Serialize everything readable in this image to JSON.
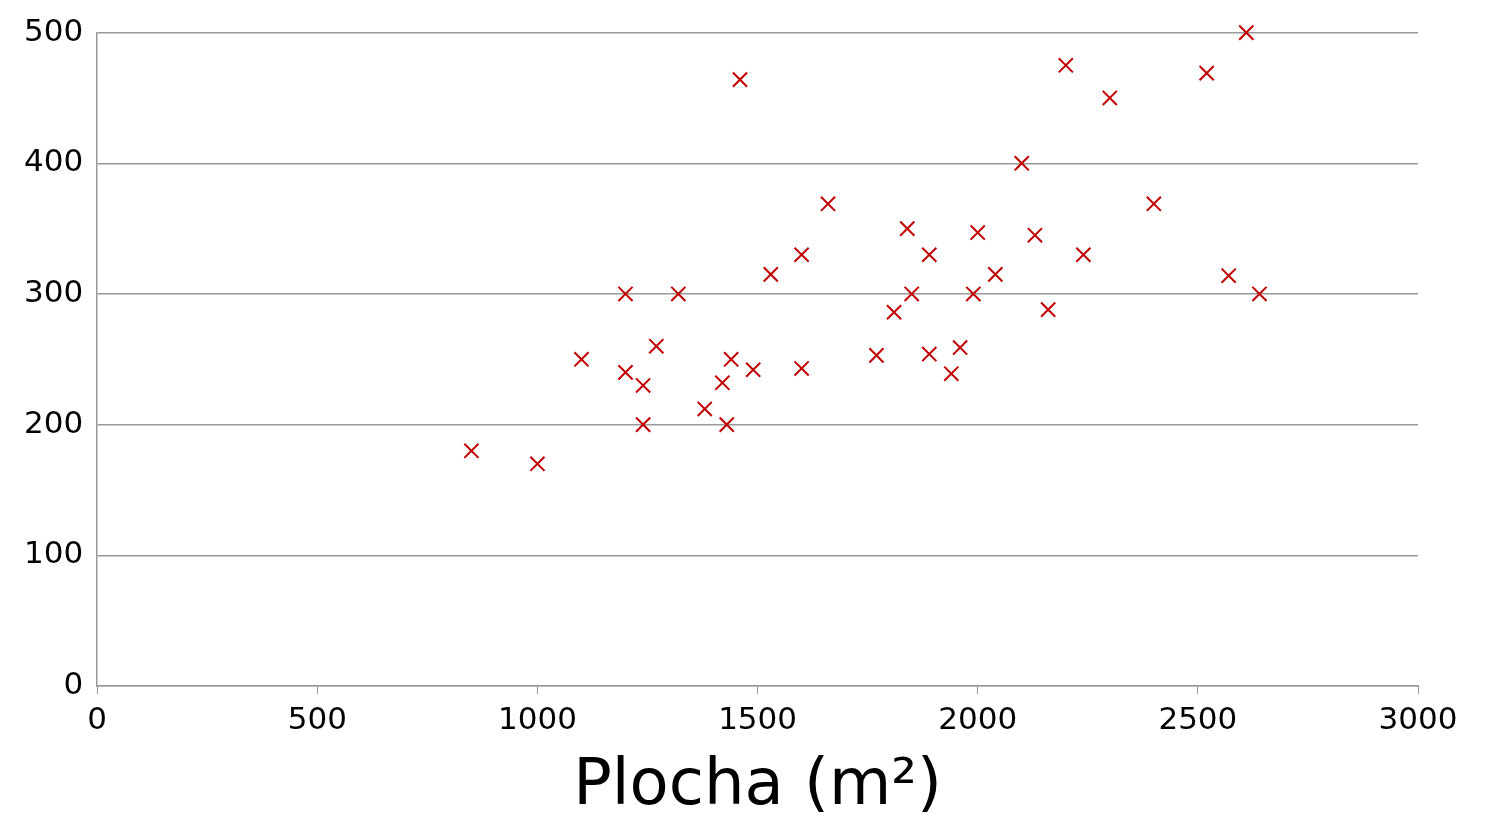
{
  "chart_data": {
    "type": "scatter",
    "xlabel": "Plocha (m²)",
    "x": [
      850,
      1000,
      1100,
      1200,
      1200,
      1240,
      1240,
      1270,
      1320,
      1380,
      1420,
      1430,
      1440,
      1460,
      1490,
      1530,
      1600,
      1600,
      1660,
      1770,
      1810,
      1840,
      1850,
      1890,
      1890,
      1940,
      1960,
      1990,
      2000,
      2040,
      2100,
      2130,
      2160,
      2200,
      2240,
      2300,
      2400,
      2520,
      2570,
      2610,
      2640
    ],
    "series": [
      {
        "color": "#c00000",
        "values": [
          180,
          170,
          250,
          300,
          240,
          230,
          200,
          260,
          300,
          212,
          232,
          200,
          250,
          464,
          242,
          315,
          330,
          243,
          369,
          253,
          286,
          350,
          300,
          254,
          330,
          239,
          259,
          300,
          347,
          315,
          400,
          345,
          288,
          475,
          330,
          450,
          369,
          469,
          314,
          500,
          300
        ]
      }
    ],
    "xlim": [
      0,
      3000
    ],
    "xticks": [
      0,
      500,
      1000,
      1500,
      2000,
      2500,
      3000
    ],
    "ylim": [
      0,
      500
    ],
    "yticks": [
      0,
      100,
      200,
      300,
      400,
      500
    ],
    "grid": "y",
    "marker": "cross",
    "legend": false
  }
}
